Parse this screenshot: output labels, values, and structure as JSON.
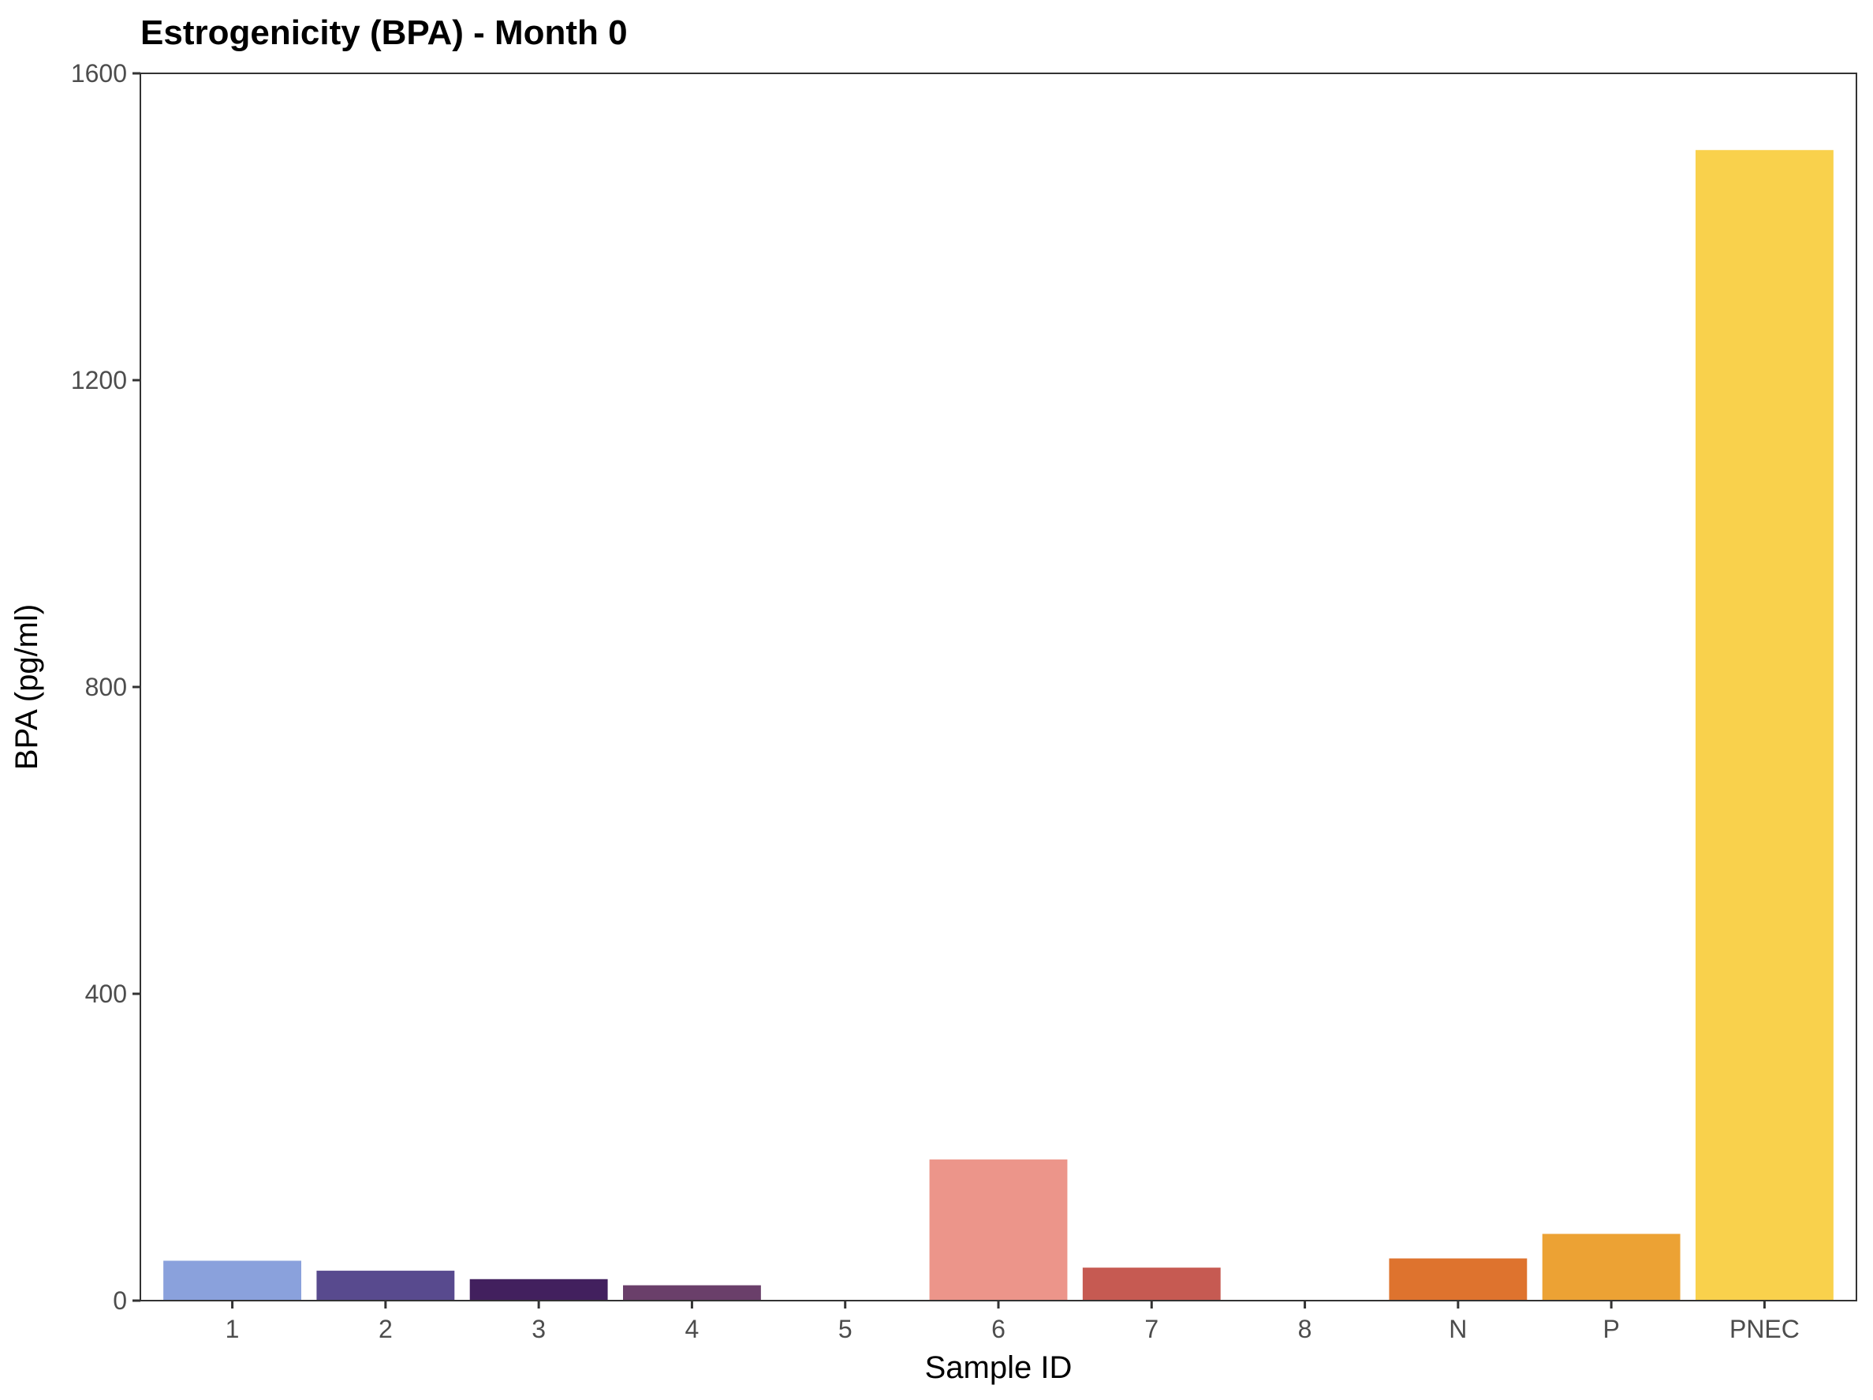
{
  "chart_data": {
    "type": "bar",
    "title": "Estrogenicity (BPA) - Month 0",
    "xlabel": "Sample ID",
    "ylabel": "BPA (pg/ml)",
    "ylim": [
      0,
      1600
    ],
    "yticks": [
      0,
      400,
      800,
      1200,
      1600
    ],
    "grid": false,
    "legend": "none",
    "categories": [
      "1",
      "2",
      "3",
      "4",
      "5",
      "6",
      "7",
      "8",
      "N",
      "P",
      "PNEC"
    ],
    "values": [
      52,
      39,
      28,
      20,
      0,
      184,
      43,
      0,
      55,
      87,
      1500
    ],
    "colors": [
      "#8aa1dc",
      "#584a8e",
      "#42205e",
      "#6a3f6a",
      "#8b3a3a",
      "#ec958a",
      "#c65a52",
      "#b04a3a",
      "#de732e",
      "#eca234",
      "#f9d14c"
    ]
  }
}
